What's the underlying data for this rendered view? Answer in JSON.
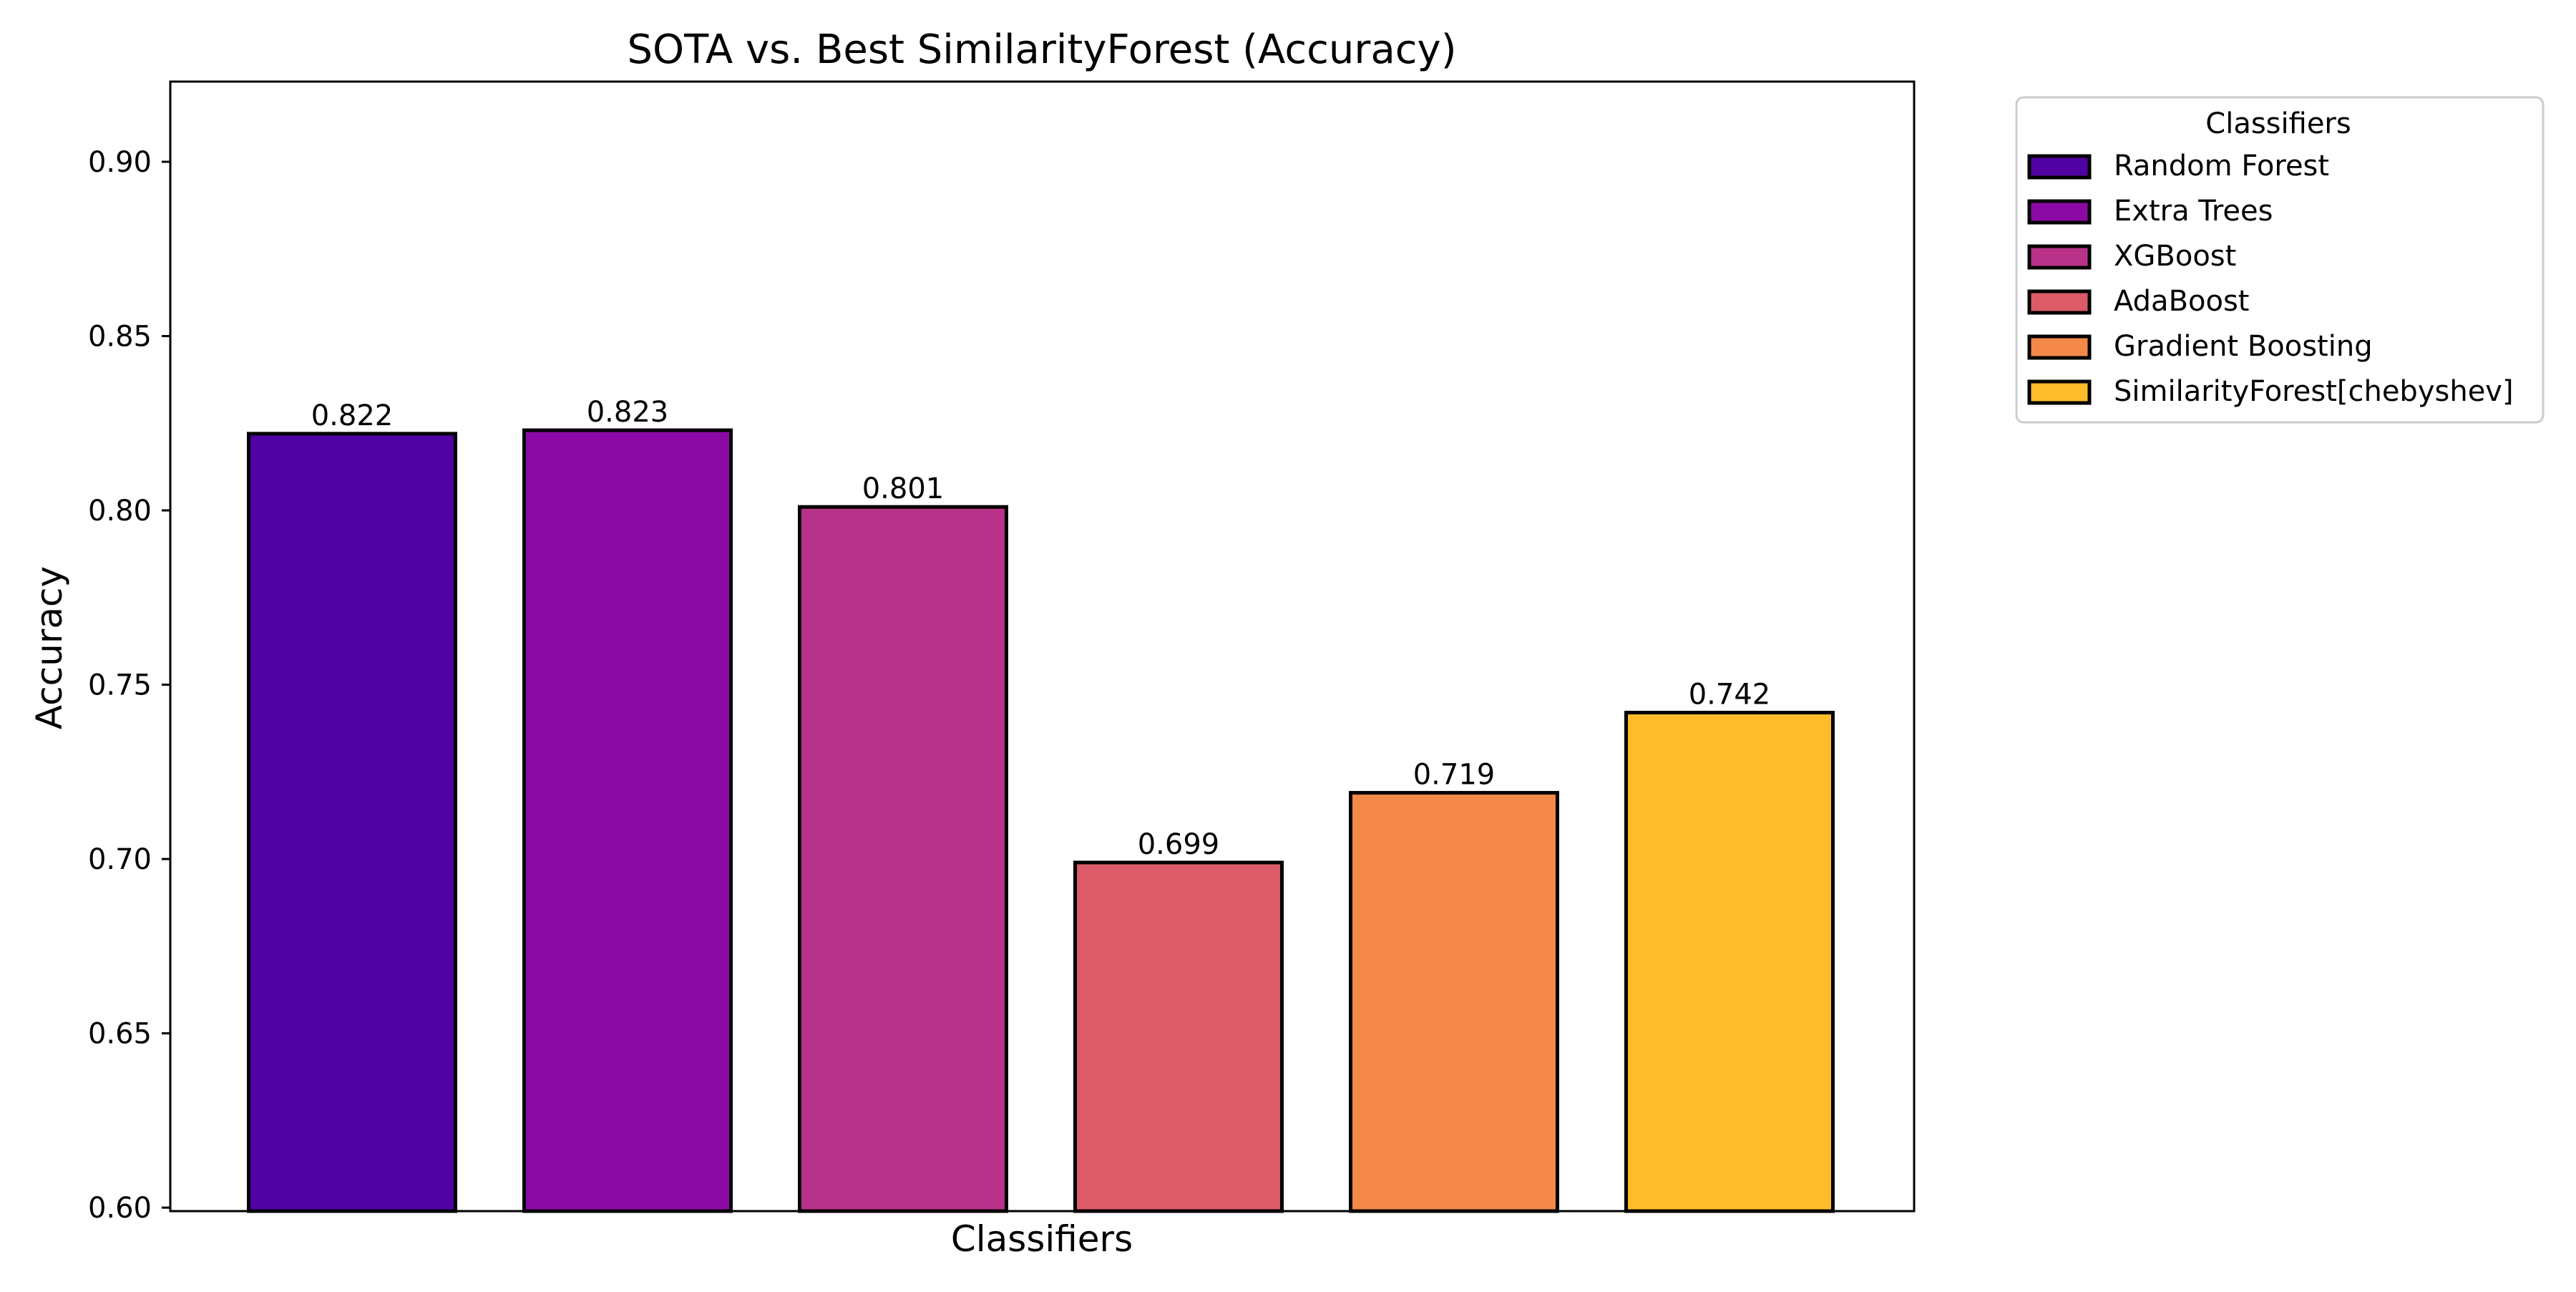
{
  "chart_data": {
    "type": "bar",
    "title": "SOTA vs. Best SimilarityForest (Accuracy)",
    "xlabel": "Classifiers",
    "ylabel": "Accuracy",
    "ylim": [
      0.599,
      0.923
    ],
    "yticks": [
      "0.60",
      "0.65",
      "0.70",
      "0.75",
      "0.80",
      "0.85",
      "0.90"
    ],
    "ytick_values": [
      0.6,
      0.65,
      0.7,
      0.75,
      0.8,
      0.85,
      0.9
    ],
    "grid": false,
    "legend": {
      "title": "Classifiers",
      "placement": "outside-top-right"
    },
    "categories": [
      "Random Forest",
      "Extra Trees",
      "XGBoost",
      "AdaBoost",
      "Gradient Boosting",
      "SimilarityForest[chebyshev]"
    ],
    "values": [
      0.822,
      0.823,
      0.801,
      0.699,
      0.719,
      0.742
    ],
    "value_labels": [
      "0.822",
      "0.823",
      "0.801",
      "0.699",
      "0.719",
      "0.742"
    ],
    "colors": [
      "#5002a3",
      "#8b0aa5",
      "#b93289",
      "#db5c68",
      "#f48849",
      "#febc2a"
    ],
    "edge_color": "#000000"
  }
}
